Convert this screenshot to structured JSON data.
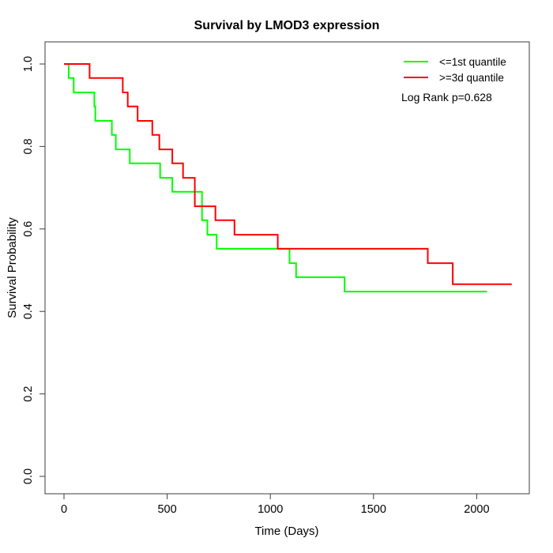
{
  "chart_data": {
    "type": "line",
    "subtype": "kaplan-meier-step-survival",
    "title": "Survival by LMOD3 expression",
    "xlabel": "Time (Days)",
    "ylabel": "Survival Probability",
    "xlim": [
      0,
      2250
    ],
    "ylim": [
      0,
      1.04
    ],
    "x_ticks": [
      0,
      500,
      1000,
      1500,
      2000
    ],
    "y_ticks": [
      0.0,
      0.2,
      0.4,
      0.6,
      0.8,
      1.0
    ],
    "y_tick_labels": [
      "0.0",
      "0.2",
      "0.4",
      "0.6",
      "0.8",
      "1.0"
    ],
    "grid": false,
    "legend": {
      "position": "top-right",
      "annotation": "Log Rank p=0.628"
    },
    "series": [
      {
        "name": "<=1st quantile",
        "color": "#00ff00",
        "steps": [
          [
            0,
            1.0
          ],
          [
            23,
            0.966
          ],
          [
            47,
            0.931
          ],
          [
            147,
            0.897
          ],
          [
            152,
            0.862
          ],
          [
            232,
            0.828
          ],
          [
            251,
            0.793
          ],
          [
            319,
            0.759
          ],
          [
            466,
            0.724
          ],
          [
            525,
            0.69
          ],
          [
            669,
            0.621
          ],
          [
            695,
            0.586
          ],
          [
            740,
            0.552
          ],
          [
            1093,
            0.517
          ],
          [
            1125,
            0.483
          ],
          [
            1360,
            0.448
          ],
          [
            2050,
            0.448
          ]
        ]
      },
      {
        "name": ">=3d quantile",
        "color": "#ff0000",
        "steps": [
          [
            0,
            1.0
          ],
          [
            124,
            0.966
          ],
          [
            285,
            0.931
          ],
          [
            309,
            0.897
          ],
          [
            357,
            0.862
          ],
          [
            428,
            0.828
          ],
          [
            462,
            0.793
          ],
          [
            525,
            0.759
          ],
          [
            577,
            0.724
          ],
          [
            634,
            0.655
          ],
          [
            734,
            0.621
          ],
          [
            826,
            0.586
          ],
          [
            1036,
            0.552
          ],
          [
            1763,
            0.517
          ],
          [
            1884,
            0.466
          ],
          [
            2170,
            0.466
          ]
        ]
      }
    ],
    "frame_color": "#3c3c3c",
    "text_color": "#000000"
  }
}
